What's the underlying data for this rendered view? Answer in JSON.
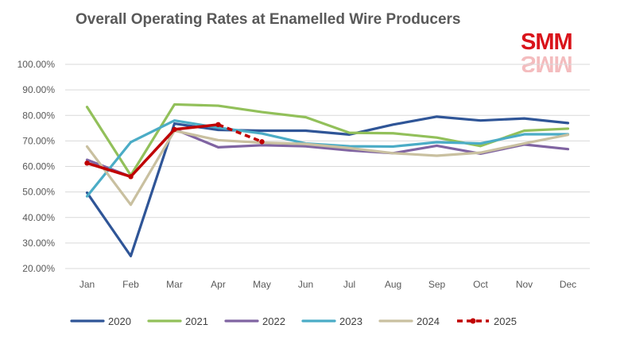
{
  "chart_data": {
    "type": "line",
    "title": "Overall Operating Rates at Enamelled Wire Producers",
    "xlabel": "",
    "ylabel": "",
    "categories": [
      "Jan",
      "Feb",
      "Mar",
      "Apr",
      "May",
      "Jun",
      "Jul",
      "Aug",
      "Sep",
      "Oct",
      "Nov",
      "Dec"
    ],
    "ylim": [
      20,
      100
    ],
    "ytick_labels": [
      "20.00%",
      "30.00%",
      "40.00%",
      "50.00%",
      "60.00%",
      "70.00%",
      "80.00%",
      "90.00%",
      "100.00%"
    ],
    "ytick_values": [
      20,
      30,
      40,
      50,
      60,
      70,
      80,
      90,
      100
    ],
    "grid": true,
    "legend_position": "bottom",
    "series": [
      {
        "name": "2020",
        "color": "#2f5597",
        "dashed": false,
        "values": [
          49.7,
          24.9,
          76.8,
          74.3,
          74.0,
          74.0,
          72.5,
          76.4,
          79.5,
          78.0,
          78.8,
          77.0
        ]
      },
      {
        "name": "2021",
        "color": "#92c05a",
        "dashed": false,
        "values": [
          83.3,
          56.5,
          84.3,
          83.8,
          81.3,
          79.3,
          73.2,
          73.0,
          71.3,
          68.0,
          74.0,
          74.8
        ]
      },
      {
        "name": "2022",
        "color": "#8064a2",
        "dashed": false,
        "values": [
          62.6,
          56.0,
          74.6,
          67.5,
          68.3,
          67.9,
          66.3,
          65.2,
          68.1,
          65.0,
          68.6,
          66.8
        ]
      },
      {
        "name": "2023",
        "color": "#4bacc6",
        "dashed": false,
        "values": [
          48.3,
          69.5,
          78.0,
          75.2,
          72.9,
          69.0,
          67.9,
          67.8,
          69.5,
          69.0,
          72.6,
          72.6
        ]
      },
      {
        "name": "2024",
        "color": "#c9c0a0",
        "dashed": false,
        "values": [
          67.8,
          45.0,
          74.0,
          70.3,
          69.3,
          68.8,
          67.2,
          65.2,
          64.2,
          65.4,
          69.0,
          72.4
        ]
      },
      {
        "name": "2025",
        "color": "#c00000",
        "dashed": true,
        "values": [
          61.3,
          56.0,
          74.5,
          76.4,
          69.7,
          null,
          null,
          null,
          null,
          null,
          null,
          null
        ],
        "solid_until_index": 3
      }
    ]
  },
  "logo": {
    "text": "SMM"
  }
}
